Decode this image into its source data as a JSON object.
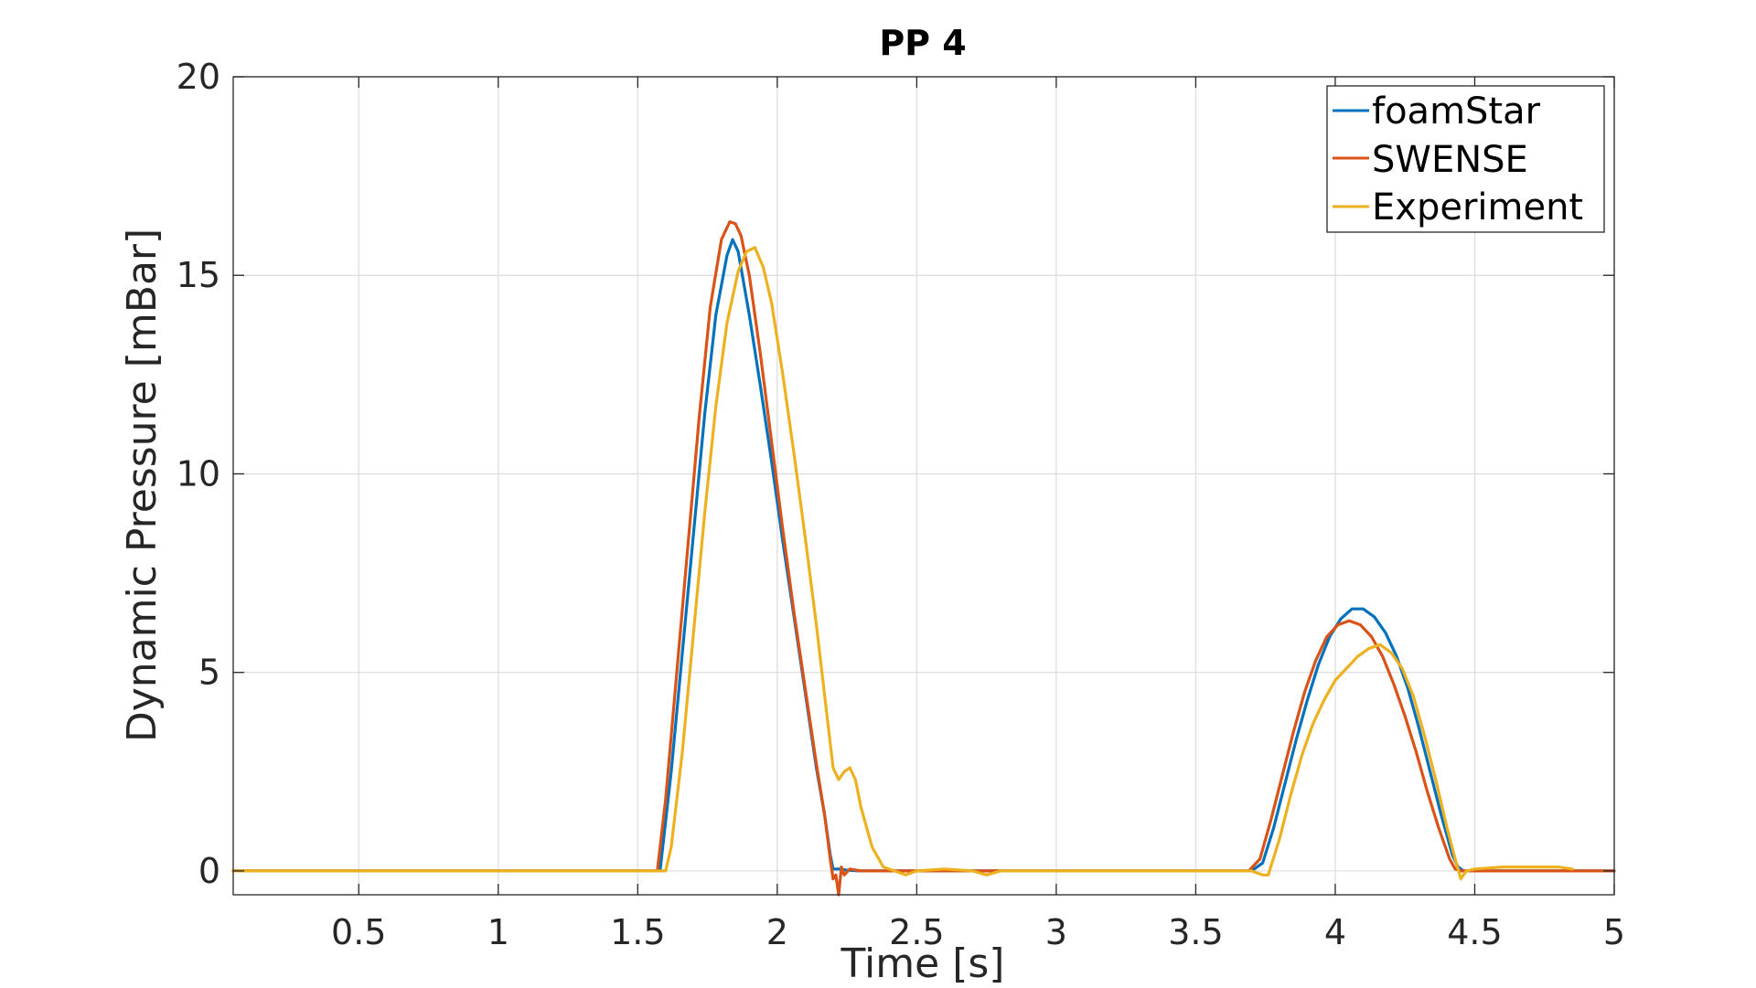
{
  "chart_data": {
    "type": "line",
    "title": "PP 4",
    "xlabel": "Time [s]",
    "ylabel": "Dynamic Pressure [mBar]",
    "xlim": [
      0.05,
      5
    ],
    "ylim": [
      -0.6,
      20
    ],
    "xticks": [
      0.5,
      1,
      1.5,
      2,
      2.5,
      3,
      3.5,
      4,
      4.5,
      5
    ],
    "xtick_labels": [
      "0.5",
      "1",
      "1.5",
      "2",
      "2.5",
      "3",
      "3.5",
      "4",
      "4.5",
      "5"
    ],
    "yticks": [
      0,
      5,
      10,
      15,
      20
    ],
    "ytick_labels": [
      "0",
      "5",
      "10",
      "15",
      "20"
    ],
    "grid": true,
    "legend_position": "top-right",
    "series": [
      {
        "name": "foamStar",
        "color": "#0072BD",
        "x": [
          0.05,
          1.0,
          1.5,
          1.58,
          1.62,
          1.66,
          1.7,
          1.74,
          1.78,
          1.82,
          1.84,
          1.86,
          1.88,
          1.9,
          1.94,
          1.98,
          2.02,
          2.06,
          2.1,
          2.14,
          2.17,
          2.19,
          2.2,
          2.21,
          2.22,
          2.25,
          2.3,
          2.5,
          3.0,
          3.5,
          3.7,
          3.74,
          3.78,
          3.82,
          3.86,
          3.9,
          3.94,
          3.98,
          4.02,
          4.06,
          4.1,
          4.14,
          4.18,
          4.22,
          4.26,
          4.3,
          4.34,
          4.38,
          4.42,
          4.44,
          4.46,
          4.5,
          5.0
        ],
        "y": [
          0,
          0,
          0,
          0,
          2.5,
          5.5,
          8.5,
          11.5,
          14.0,
          15.5,
          15.9,
          15.6,
          14.8,
          14.0,
          12.2,
          10.3,
          8.3,
          6.4,
          4.5,
          2.6,
          1.4,
          0.4,
          0.05,
          0.05,
          0.05,
          0.02,
          0,
          0,
          0,
          0,
          0,
          0.2,
          1.1,
          2.2,
          3.3,
          4.3,
          5.2,
          5.9,
          6.35,
          6.6,
          6.6,
          6.4,
          6.0,
          5.4,
          4.6,
          3.6,
          2.5,
          1.4,
          0.4,
          0.1,
          0,
          0,
          0
        ]
      },
      {
        "name": "SWENSE",
        "color": "#D95319",
        "x": [
          0.05,
          1.0,
          1.5,
          1.57,
          1.6,
          1.64,
          1.68,
          1.72,
          1.76,
          1.8,
          1.83,
          1.85,
          1.87,
          1.9,
          1.94,
          1.98,
          2.02,
          2.06,
          2.1,
          2.14,
          2.17,
          2.19,
          2.2,
          2.21,
          2.22,
          2.23,
          2.24,
          2.26,
          2.3,
          2.5,
          3.0,
          3.5,
          3.69,
          3.73,
          3.77,
          3.81,
          3.85,
          3.89,
          3.93,
          3.97,
          4.01,
          4.05,
          4.09,
          4.13,
          4.17,
          4.21,
          4.25,
          4.29,
          4.33,
          4.37,
          4.41,
          4.43,
          4.45,
          4.5,
          5.0
        ],
        "y": [
          0,
          0,
          0,
          0,
          1.8,
          5.0,
          8.2,
          11.4,
          14.2,
          15.9,
          16.35,
          16.3,
          16.0,
          15.0,
          13.0,
          10.8,
          8.6,
          6.5,
          4.6,
          2.7,
          1.4,
          0.3,
          -0.2,
          -0.1,
          -0.6,
          0.1,
          -0.1,
          0.05,
          0,
          0,
          0,
          0,
          0,
          0.3,
          1.3,
          2.4,
          3.5,
          4.5,
          5.3,
          5.9,
          6.2,
          6.3,
          6.2,
          5.9,
          5.4,
          4.7,
          3.9,
          3.0,
          2.0,
          1.1,
          0.3,
          0.05,
          0,
          0,
          0
        ]
      },
      {
        "name": "Experiment",
        "color": "#EDB120",
        "x": [
          0.05,
          1.0,
          1.5,
          1.6,
          1.62,
          1.66,
          1.7,
          1.74,
          1.78,
          1.82,
          1.86,
          1.89,
          1.92,
          1.95,
          1.98,
          2.02,
          2.06,
          2.1,
          2.14,
          2.18,
          2.2,
          2.22,
          2.24,
          2.26,
          2.28,
          2.3,
          2.34,
          2.38,
          2.42,
          2.46,
          2.5,
          2.6,
          2.7,
          2.75,
          2.8,
          2.9,
          3.0,
          3.5,
          3.7,
          3.74,
          3.76,
          3.8,
          3.84,
          3.88,
          3.92,
          3.96,
          4.0,
          4.04,
          4.08,
          4.12,
          4.16,
          4.2,
          4.24,
          4.28,
          4.32,
          4.36,
          4.4,
          4.43,
          4.45,
          4.47,
          4.5,
          4.6,
          4.8,
          4.85
        ],
        "y": [
          0,
          0,
          0,
          0,
          0.6,
          3.0,
          6.0,
          9.0,
          11.7,
          13.8,
          15.1,
          15.6,
          15.7,
          15.2,
          14.3,
          12.5,
          10.5,
          8.4,
          6.2,
          3.8,
          2.6,
          2.3,
          2.5,
          2.6,
          2.3,
          1.6,
          0.6,
          0.1,
          0,
          -0.1,
          0,
          0.05,
          0,
          -0.1,
          0,
          0,
          0,
          0,
          0,
          -0.1,
          -0.1,
          0.8,
          1.9,
          2.9,
          3.7,
          4.3,
          4.8,
          5.1,
          5.4,
          5.6,
          5.7,
          5.5,
          5.1,
          4.4,
          3.4,
          2.3,
          1.1,
          0.3,
          -0.2,
          0,
          0.05,
          0.1,
          0.1,
          0.05
        ]
      }
    ]
  }
}
